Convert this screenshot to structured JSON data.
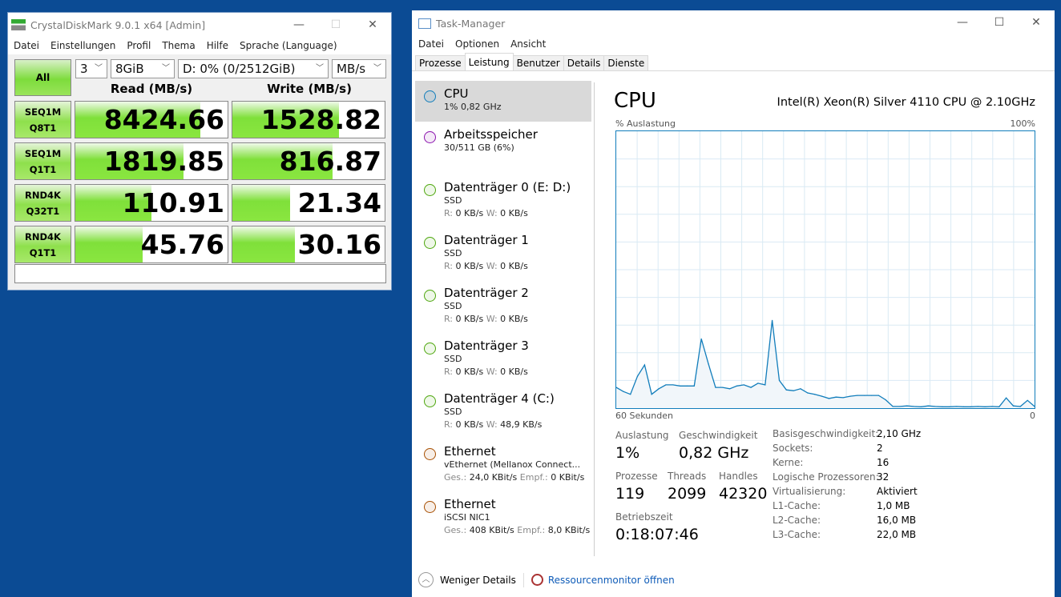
{
  "cdm": {
    "title": "CrystalDiskMark 9.0.1 x64 [Admin]",
    "menu": [
      "Datei",
      "Einstellungen",
      "Profil",
      "Thema",
      "Hilfe",
      "Sprache (Language)"
    ],
    "all_label": "All",
    "count": "3",
    "size": "8GiB",
    "drive": "D: 0% (0/2512GiB)",
    "unit": "MB/s",
    "read_header": "Read (MB/s)",
    "write_header": "Write (MB/s)",
    "rows": [
      {
        "l1": "SEQ1M",
        "l2": "Q8T1",
        "read": "8424.66",
        "write": "1528.82",
        "read_fill": 0.82,
        "write_fill": 0.7
      },
      {
        "l1": "SEQ1M",
        "l2": "Q1T1",
        "read": "1819.85",
        "write": "816.87",
        "read_fill": 0.71,
        "write_fill": 0.66
      },
      {
        "l1": "RND4K",
        "l2": "Q32T1",
        "read": "110.91",
        "write": "21.34",
        "read_fill": 0.5,
        "write_fill": 0.38
      },
      {
        "l1": "RND4K",
        "l2": "Q1T1",
        "read": "45.76",
        "write": "30.16",
        "read_fill": 0.44,
        "write_fill": 0.41
      }
    ],
    "comment": ""
  },
  "tm": {
    "title": "Task-Manager",
    "menu": [
      "Datei",
      "Optionen",
      "Ansicht"
    ],
    "tabs": [
      "Prozesse",
      "Leistung",
      "Benutzer",
      "Details",
      "Dienste"
    ],
    "active_tab": "Leistung",
    "sidebar": [
      {
        "name": "CPU",
        "sub": "1% 0,82 GHz",
        "color": "#117dbb"
      },
      {
        "name": "Arbeitsspeicher",
        "sub": "30/511 GB (6%)",
        "color": "#8b12ae"
      },
      {
        "name": "Datenträger 0 (E: D:)",
        "sub": "SSD",
        "r": "0 KB/s",
        "w": "0 KB/s",
        "color": "#4da60c"
      },
      {
        "name": "Datenträger 1",
        "sub": "SSD",
        "r": "0 KB/s",
        "w": "0 KB/s",
        "color": "#4da60c"
      },
      {
        "name": "Datenträger 2",
        "sub": "SSD",
        "r": "0 KB/s",
        "w": "0 KB/s",
        "color": "#4da60c"
      },
      {
        "name": "Datenträger 3",
        "sub": "SSD",
        "r": "0 KB/s",
        "w": "0 KB/s",
        "color": "#4da60c"
      },
      {
        "name": "Datenträger 4 (C:)",
        "sub": "SSD",
        "r": "0 KB/s",
        "w": "48,9 KB/s",
        "color": "#4da60c"
      },
      {
        "name": "Ethernet",
        "sub": "vEthernet (Mellanox Connect...",
        "s": "24,0 KBit/s",
        "e": "0 KBit/s",
        "color": "#a74f01"
      },
      {
        "name": "Ethernet",
        "sub": "iSCSI NIC1",
        "s": "408 KBit/s",
        "e": "8,0 KBit/s",
        "color": "#a74f01"
      }
    ],
    "labels": {
      "r": "R:",
      "w": "W:",
      "s": "Ges.:",
      "e": "Empf.:"
    },
    "cpu": {
      "heading": "CPU",
      "model": "Intel(R) Xeon(R) Silver 4110 CPU @ 2.10GHz",
      "y_label": "% Auslastung",
      "y_max": "100%",
      "x_label": "60 Sekunden",
      "x_min": "0",
      "history": [
        7.5,
        6,
        5,
        11.5,
        15.6,
        5,
        7,
        8.4,
        8.4,
        8,
        8,
        8,
        25,
        16,
        7.5,
        7.5,
        7,
        8,
        8.4,
        7.5,
        9,
        8.4,
        31.7,
        10,
        6.6,
        6.3,
        7,
        5.5,
        5,
        4.3,
        3.5,
        4,
        3.8,
        4.3,
        4.6,
        4.6,
        4.6,
        4.6,
        3,
        0.6,
        0.6,
        0.8,
        0.6,
        0.5,
        0.8,
        0.6,
        0.5,
        0.5,
        0.6,
        0.5,
        0.5,
        0.6,
        0.5,
        0.6,
        0.5,
        3.7,
        0.8,
        0.6,
        2.8,
        0.6
      ]
    },
    "stats": {
      "auslastung_label": "Auslastung",
      "auslastung": "1%",
      "geschw_label": "Geschwindigkeit",
      "geschw": "0,82 GHz",
      "prozesse_label": "Prozesse",
      "prozesse": "119",
      "threads_label": "Threads",
      "threads": "2099",
      "handles_label": "Handles",
      "handles": "42320",
      "uptime_label": "Betriebszeit",
      "uptime": "0:18:07:46"
    },
    "specs": [
      {
        "k": "Basisgeschwindigkeit:",
        "v": "2,10 GHz"
      },
      {
        "k": "Sockets:",
        "v": "2"
      },
      {
        "k": "Kerne:",
        "v": "16"
      },
      {
        "k": "Logische Prozessoren:",
        "v": "32"
      },
      {
        "k": "Virtualisierung:",
        "v": "Aktiviert"
      },
      {
        "k": "L1-Cache:",
        "v": "1,0 MB"
      },
      {
        "k": "L2-Cache:",
        "v": "16,0 MB"
      },
      {
        "k": "L3-Cache:",
        "v": "22,0 MB"
      }
    ],
    "footer": {
      "less": "Weniger Details",
      "resmon": "Ressourcenmonitor öffnen"
    }
  }
}
